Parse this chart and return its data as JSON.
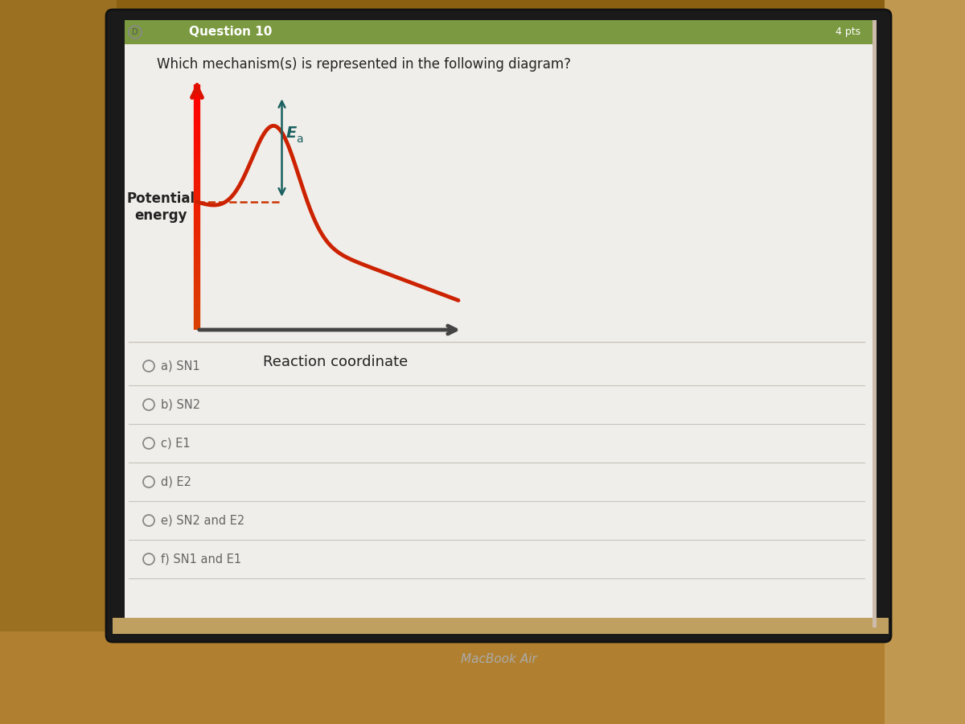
{
  "title": "Question 10",
  "title_prefix": "D",
  "pts_label": "4 pts",
  "question_text": "Which mechanism(s) is represented in the following diagram?",
  "ylabel": "Potential\nenergy",
  "xlabel": "Reaction coordinate",
  "ea_label": "E",
  "ea_subscript": "a",
  "options": [
    "a) SN1",
    "b) SN2",
    "c) E1",
    "d) E2",
    "e) SN2 and E2",
    "f) SN1 and E1"
  ],
  "bg_color_left": "#8B6010",
  "bg_color_right": "#b09060",
  "screen_color": "#dcdad4",
  "panel_color": "#e8e6e0",
  "header_color": "#7a9940",
  "curve_color": "#cc2200",
  "axis_y_color_top": "#dd1100",
  "axis_y_color_bot": "#cc6633",
  "axis_x_color": "#555555",
  "dashed_color": "#cc3300",
  "ea_arrow_color": "#1a6060",
  "ea_text_color": "#1a6060",
  "divider_color": "#c8c4bc",
  "option_text_color": "#666666",
  "circle_color": "#888888",
  "macbook_color": "#aaaaaa",
  "bottom_bar_color": "#b08040"
}
